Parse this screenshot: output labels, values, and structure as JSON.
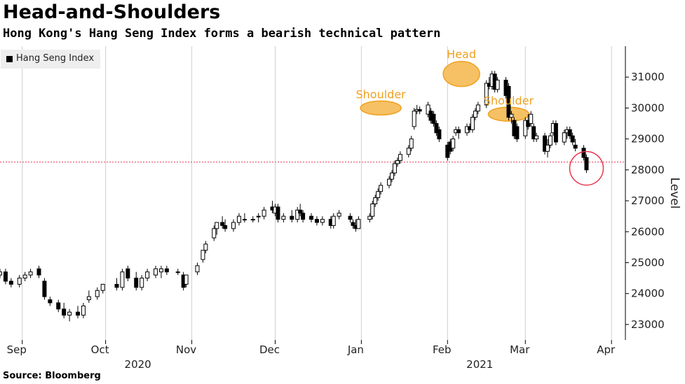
{
  "header": {
    "title": "Head-and-Shoulders",
    "subtitle": "Hong Kong's Hang Seng Index forms a bearish technical pattern"
  },
  "footer": {
    "source": "Source: Bloomberg"
  },
  "colors": {
    "up_candle": "#ffffff",
    "down_candle": "#000000",
    "reference_line": "#e8374f",
    "highlight_circle": "#e8374f",
    "pattern_fill": "#f5c164",
    "pattern_stroke": "#f0a020",
    "grid": "#d0d0d0"
  },
  "chart_data": {
    "type": "candlestick",
    "title": "Head-and-Shoulders",
    "subtitle": "Hong Kong's Hang Seng Index forms a bearish technical pattern",
    "ylabel": "Level",
    "ylim": [
      22500,
      32000
    ],
    "y_ticks": [
      23000,
      24000,
      25000,
      26000,
      27000,
      28000,
      29000,
      30000,
      31000
    ],
    "y_axis_side": "right",
    "x_range": [
      "2020-08-24",
      "2021-04-06"
    ],
    "x_ticks": [
      {
        "date": "2020-09-01",
        "label": "Sep"
      },
      {
        "date": "2020-10-01",
        "label": "Oct"
      },
      {
        "date": "2020-11-01",
        "label": "Nov"
      },
      {
        "date": "2020-12-01",
        "label": "Dec"
      },
      {
        "date": "2021-01-01",
        "label": "Jan"
      },
      {
        "date": "2021-02-01",
        "label": "Feb"
      },
      {
        "date": "2021-03-01",
        "label": "Mar"
      },
      {
        "date": "2021-04-01",
        "label": "Apr"
      }
    ],
    "year_labels": [
      {
        "date": "2020-10-01",
        "label": "2020"
      },
      {
        "date": "2021-02-01",
        "label": "2021"
      }
    ],
    "grid": "vertical",
    "legend": {
      "position": "top-left",
      "entries": [
        "Hang Seng Index"
      ]
    },
    "reference_line": {
      "value": 28250,
      "style": "dotted"
    },
    "annotations": [
      {
        "label": "Shoulder",
        "date": "2021-01-08",
        "value": 30000
      },
      {
        "label": "Head",
        "date": "2021-02-06",
        "value": 31100
      },
      {
        "label": "Shoulder",
        "date": "2021-02-23",
        "value": 29800
      }
    ],
    "highlight": {
      "date": "2021-03-23",
      "value": 28050
    },
    "series": [
      {
        "name": "Hang Seng Index",
        "candles": [
          [
            "2020-08-24",
            24600,
            24800,
            24500,
            24700
          ],
          [
            "2020-08-26",
            24700,
            24800,
            24300,
            24400
          ],
          [
            "2020-08-28",
            24400,
            24500,
            24200,
            24300
          ],
          [
            "2020-08-31",
            24300,
            24600,
            24200,
            24500
          ],
          [
            "2020-09-02",
            24500,
            24700,
            24400,
            24600
          ],
          [
            "2020-09-04",
            24600,
            24800,
            24500,
            24700
          ],
          [
            "2020-09-07",
            24800,
            24900,
            24500,
            24600
          ],
          [
            "2020-09-09",
            24400,
            24500,
            23800,
            23900
          ],
          [
            "2020-09-11",
            23800,
            23900,
            23600,
            23700
          ],
          [
            "2020-09-14",
            23700,
            23800,
            23400,
            23500
          ],
          [
            "2020-09-16",
            23500,
            23700,
            23200,
            23300
          ],
          [
            "2020-09-18",
            23300,
            23500,
            23100,
            23400
          ],
          [
            "2020-09-21",
            23400,
            23600,
            23200,
            23300
          ],
          [
            "2020-09-23",
            23300,
            23700,
            23200,
            23600
          ],
          [
            "2020-09-25",
            23800,
            24100,
            23700,
            23900
          ],
          [
            "2020-09-28",
            23900,
            24200,
            23800,
            24100
          ],
          [
            "2020-09-30",
            24100,
            24300,
            24000,
            24300
          ],
          [
            "2020-10-05",
            24300,
            24500,
            24100,
            24200
          ],
          [
            "2020-10-07",
            24200,
            24800,
            24100,
            24700
          ],
          [
            "2020-10-09",
            24800,
            24900,
            24400,
            24500
          ],
          [
            "2020-10-12",
            24500,
            24700,
            24100,
            24200
          ],
          [
            "2020-10-14",
            24200,
            24600,
            24100,
            24500
          ],
          [
            "2020-10-16",
            24500,
            24800,
            24400,
            24700
          ],
          [
            "2020-10-19",
            24600,
            24900,
            24500,
            24800
          ],
          [
            "2020-10-21",
            24700,
            24900,
            24500,
            24800
          ],
          [
            "2020-10-23",
            24800,
            24900,
            24600,
            24700
          ],
          [
            "2020-10-27",
            24700,
            24800,
            24600,
            24700
          ],
          [
            "2020-10-29",
            24600,
            24700,
            24100,
            24200
          ],
          [
            "2020-10-30",
            24300,
            24600,
            24200,
            24600
          ],
          [
            "2020-11-03",
            24700,
            25000,
            24600,
            24900
          ],
          [
            "2020-11-05",
            25100,
            25400,
            25000,
            25400
          ],
          [
            "2020-11-06",
            25400,
            25700,
            25300,
            25600
          ],
          [
            "2020-11-09",
            25800,
            26200,
            25700,
            26100
          ],
          [
            "2020-11-10",
            26100,
            26300,
            25900,
            26300
          ],
          [
            "2020-11-12",
            26300,
            26500,
            26100,
            26200
          ],
          [
            "2020-11-13",
            26200,
            26400,
            26000,
            26100
          ],
          [
            "2020-11-16",
            26100,
            26400,
            26000,
            26300
          ],
          [
            "2020-11-18",
            26300,
            26600,
            26200,
            26500
          ],
          [
            "2020-11-20",
            26400,
            26600,
            26300,
            26400
          ],
          [
            "2020-11-23",
            26400,
            26500,
            26300,
            26400
          ],
          [
            "2020-11-25",
            26500,
            26600,
            26300,
            26500
          ],
          [
            "2020-11-27",
            26500,
            26800,
            26400,
            26700
          ],
          [
            "2020-11-30",
            26800,
            27000,
            26600,
            26700
          ],
          [
            "2020-12-01",
            26600,
            26900,
            26500,
            26800
          ],
          [
            "2020-12-02",
            26800,
            26900,
            26300,
            26400
          ],
          [
            "2020-12-04",
            26400,
            26600,
            26300,
            26500
          ],
          [
            "2020-12-07",
            26500,
            26700,
            26300,
            26400
          ],
          [
            "2020-12-09",
            26400,
            26800,
            26300,
            26700
          ],
          [
            "2020-12-10",
            26700,
            26900,
            26500,
            26600
          ],
          [
            "2020-12-11",
            26600,
            26700,
            26300,
            26400
          ],
          [
            "2020-12-14",
            26500,
            26600,
            26300,
            26400
          ],
          [
            "2020-12-16",
            26400,
            26500,
            26200,
            26300
          ],
          [
            "2020-12-18",
            26300,
            26500,
            26200,
            26400
          ],
          [
            "2020-12-21",
            26400,
            26500,
            26100,
            26200
          ],
          [
            "2020-12-22",
            26200,
            26600,
            26100,
            26500
          ],
          [
            "2020-12-24",
            26500,
            26700,
            26400,
            26600
          ],
          [
            "2020-12-28",
            26500,
            26600,
            26300,
            26400
          ],
          [
            "2020-12-29",
            26300,
            26400,
            26100,
            26200
          ],
          [
            "2020-12-30",
            26200,
            26400,
            26000,
            26100
          ],
          [
            "2020-12-31",
            26100,
            26500,
            26100,
            26400
          ],
          [
            "2021-01-04",
            26400,
            26600,
            26300,
            26500
          ],
          [
            "2021-01-05",
            26500,
            27000,
            26400,
            26900
          ],
          [
            "2021-01-06",
            26900,
            27200,
            26800,
            27100
          ],
          [
            "2021-01-07",
            27100,
            27400,
            27000,
            27300
          ],
          [
            "2021-01-08",
            27300,
            27600,
            27200,
            27500
          ],
          [
            "2021-01-11",
            27500,
            27800,
            27400,
            27700
          ],
          [
            "2021-01-12",
            27700,
            28000,
            27600,
            27900
          ],
          [
            "2021-01-13",
            27900,
            28300,
            27800,
            28200
          ],
          [
            "2021-01-14",
            28200,
            28400,
            28100,
            28300
          ],
          [
            "2021-01-15",
            28300,
            28600,
            28200,
            28500
          ],
          [
            "2021-01-18",
            28500,
            28800,
            28400,
            28700
          ],
          [
            "2021-01-19",
            28700,
            29100,
            28600,
            29000
          ],
          [
            "2021-01-20",
            29400,
            30000,
            29300,
            29900
          ],
          [
            "2021-01-21",
            29900,
            30100,
            29800,
            29950
          ],
          [
            "2021-01-22",
            29950,
            30050,
            29800,
            29900
          ],
          [
            "2021-01-25",
            29800,
            30200,
            29700,
            30100
          ],
          [
            "2021-01-26",
            29900,
            30000,
            29500,
            29600
          ],
          [
            "2021-01-27",
            29800,
            29900,
            29400,
            29500
          ],
          [
            "2021-01-28",
            29500,
            29600,
            29100,
            29200
          ],
          [
            "2021-01-29",
            29300,
            29400,
            28900,
            29000
          ],
          [
            "2021-02-01",
            28800,
            28900,
            28300,
            28400
          ],
          [
            "2021-02-02",
            28900,
            29000,
            28500,
            28600
          ],
          [
            "2021-02-03",
            28700,
            29100,
            28600,
            29000
          ],
          [
            "2021-02-04",
            29200,
            29400,
            29100,
            29300
          ],
          [
            "2021-02-05",
            29300,
            29400,
            29000,
            29200
          ],
          [
            "2021-02-08",
            29200,
            29500,
            29100,
            29400
          ],
          [
            "2021-02-09",
            29400,
            29500,
            29200,
            29300
          ],
          [
            "2021-02-10",
            29300,
            29800,
            29200,
            29700
          ],
          [
            "2021-02-11",
            29700,
            30000,
            29600,
            29900
          ],
          [
            "2021-02-12",
            29900,
            30200,
            29800,
            30100
          ],
          [
            "2021-02-15",
            30100,
            30900,
            30000,
            30800
          ],
          [
            "2021-02-16",
            30800,
            31000,
            30600,
            30700
          ],
          [
            "2021-02-17",
            30700,
            31200,
            30600,
            31100
          ],
          [
            "2021-02-18",
            31100,
            31200,
            30500,
            30600
          ],
          [
            "2021-02-19",
            30600,
            31000,
            30500,
            30900
          ],
          [
            "2021-02-22",
            30900,
            31000,
            30300,
            30400
          ],
          [
            "2021-02-23",
            30700,
            30800,
            29600,
            29700
          ],
          [
            "2021-02-24",
            29700,
            29900,
            29500,
            29800
          ],
          [
            "2021-02-25",
            29600,
            29700,
            29000,
            29100
          ],
          [
            "2021-02-26",
            29400,
            29500,
            28900,
            29000
          ],
          [
            "2021-03-01",
            29100,
            29700,
            29000,
            29600
          ],
          [
            "2021-03-02",
            29600,
            29800,
            29300,
            29400
          ],
          [
            "2021-03-03",
            29500,
            29900,
            29400,
            29800
          ],
          [
            "2021-03-04",
            29400,
            29500,
            28900,
            29000
          ],
          [
            "2021-03-05",
            29000,
            29200,
            28900,
            29100
          ],
          [
            "2021-03-08",
            29100,
            29200,
            28500,
            28600
          ],
          [
            "2021-03-09",
            28600,
            29000,
            28400,
            28800
          ],
          [
            "2021-03-10",
            28800,
            29200,
            28700,
            29100
          ],
          [
            "2021-03-11",
            29200,
            29600,
            29100,
            29500
          ],
          [
            "2021-03-12",
            29500,
            29600,
            28800,
            28900
          ],
          [
            "2021-03-15",
            28900,
            29300,
            28800,
            29200
          ],
          [
            "2021-03-16",
            29200,
            29400,
            29000,
            29300
          ],
          [
            "2021-03-17",
            29300,
            29400,
            29000,
            29100
          ],
          [
            "2021-03-18",
            29100,
            29200,
            28800,
            28900
          ],
          [
            "2021-03-19",
            28800,
            29000,
            28600,
            28700
          ],
          [
            "2021-03-22",
            28700,
            28800,
            28300,
            28400
          ],
          [
            "2021-03-23",
            28400,
            28500,
            27900,
            28000
          ]
        ]
      }
    ]
  }
}
